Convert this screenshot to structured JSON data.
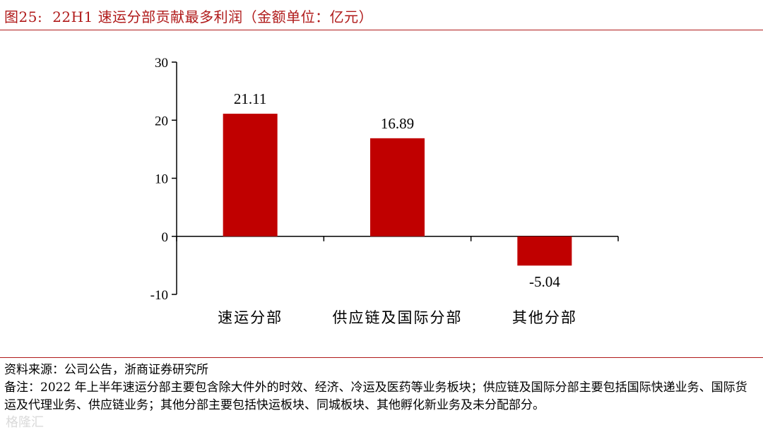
{
  "header": {
    "figure_label": "图25:",
    "title": "22H1 速运分部贡献最多利润（金额单位：亿元）"
  },
  "chart_data": {
    "type": "bar",
    "title": "22H1 速运分部贡献最多利润（金额单位：亿元）",
    "categories": [
      "速运分部",
      "供应链及国际分部",
      "其他分部"
    ],
    "values": [
      21.11,
      16.89,
      -5.04
    ],
    "data_labels": [
      "21.11",
      "16.89",
      "-5.04"
    ],
    "ylim": [
      -10,
      30
    ],
    "yticks": [
      30,
      20,
      10,
      0,
      -10
    ],
    "ytick_labels": [
      "30",
      "20",
      "10",
      "0",
      "-10"
    ],
    "xlabel": "",
    "ylabel": "",
    "grid": false,
    "bar_color": "#c00000"
  },
  "footer": {
    "source": "资料来源：公司公告，浙商证券研究所",
    "note": "备注：2022 年上半年速运分部主要包含除大件外的时效、经济、冷运及医药等业务板块；供应链及国际分部主要包括国际快递业务、国际货运及代理业务、供应链业务；其他分部主要包括快运板块、同城板块、其他孵化新业务及未分配部分。",
    "watermark": "格隆汇"
  }
}
